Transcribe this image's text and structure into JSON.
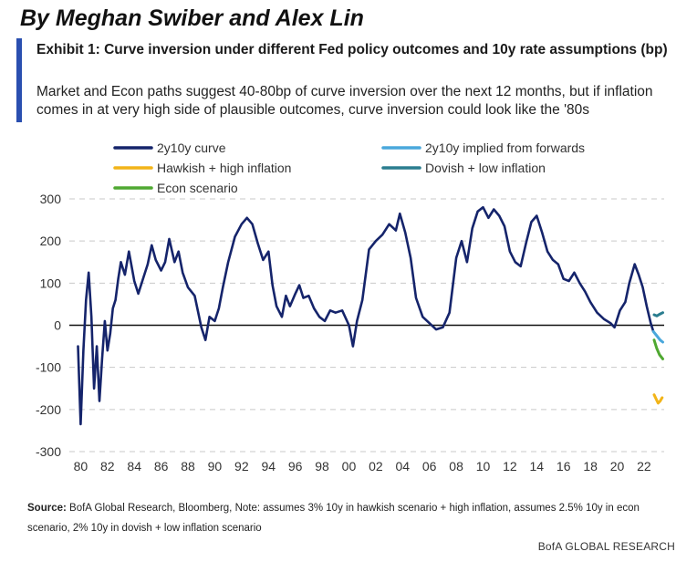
{
  "header": {
    "byline": "By Meghan Swiber and Alex Lin",
    "exhibit_title": "Exhibit 1: Curve inversion under different Fed policy outcomes and 10y rate assumptions (bp)",
    "subtitle": "Market and Econ paths suggest 40-80bp of curve inversion over the next 12 months, but if inflation comes in at very high side of plausible outcomes, curve inversion could look like the '80s"
  },
  "footer": {
    "source_label": "Source:",
    "source_text": " BofA Global Research, Bloomberg, Note: assumes 3% 10y in hawkish scenario + high inflation, assumes 2.5% 10y in econ scenario, 2% 10y in dovish + low inflation scenario",
    "brand": "BofA GLOBAL RESEARCH"
  },
  "chart_data": {
    "type": "line",
    "title": "",
    "xlabel": "",
    "ylabel": "",
    "ylim": [
      -300,
      300
    ],
    "xlim": [
      1979.7,
      2023.5
    ],
    "y_ticks": [
      300,
      200,
      100,
      0,
      -100,
      -200,
      -300
    ],
    "x_ticks": [
      {
        "year": 1980,
        "label": "80"
      },
      {
        "year": 1982,
        "label": "82"
      },
      {
        "year": 1984,
        "label": "84"
      },
      {
        "year": 1986,
        "label": "86"
      },
      {
        "year": 1988,
        "label": "88"
      },
      {
        "year": 1990,
        "label": "90"
      },
      {
        "year": 1992,
        "label": "92"
      },
      {
        "year": 1994,
        "label": "94"
      },
      {
        "year": 1996,
        "label": "96"
      },
      {
        "year": 1998,
        "label": "98"
      },
      {
        "year": 2000,
        "label": "00"
      },
      {
        "year": 2002,
        "label": "02"
      },
      {
        "year": 2004,
        "label": "04"
      },
      {
        "year": 2006,
        "label": "06"
      },
      {
        "year": 2008,
        "label": "08"
      },
      {
        "year": 2010,
        "label": "10"
      },
      {
        "year": 2012,
        "label": "12"
      },
      {
        "year": 2014,
        "label": "14"
      },
      {
        "year": 2016,
        "label": "16"
      },
      {
        "year": 2018,
        "label": "18"
      },
      {
        "year": 2020,
        "label": "20"
      },
      {
        "year": 2022,
        "label": "22"
      }
    ],
    "grid": "horizontal dashed",
    "legend_position": "top",
    "series": [
      {
        "name": "2y10y curve",
        "color": "#15246b",
        "points": [
          [
            1979.8,
            -50
          ],
          [
            1980.0,
            -235
          ],
          [
            1980.2,
            -60
          ],
          [
            1980.4,
            60
          ],
          [
            1980.6,
            125
          ],
          [
            1980.8,
            20
          ],
          [
            1981.0,
            -150
          ],
          [
            1981.2,
            -50
          ],
          [
            1981.4,
            -180
          ],
          [
            1981.6,
            -80
          ],
          [
            1981.8,
            10
          ],
          [
            1982.0,
            -60
          ],
          [
            1982.2,
            -20
          ],
          [
            1982.4,
            40
          ],
          [
            1982.6,
            60
          ],
          [
            1982.8,
            110
          ],
          [
            1983.0,
            150
          ],
          [
            1983.3,
            120
          ],
          [
            1983.6,
            175
          ],
          [
            1984.0,
            105
          ],
          [
            1984.3,
            75
          ],
          [
            1984.6,
            105
          ],
          [
            1985.0,
            145
          ],
          [
            1985.3,
            190
          ],
          [
            1985.6,
            155
          ],
          [
            1986.0,
            130
          ],
          [
            1986.3,
            150
          ],
          [
            1986.6,
            205
          ],
          [
            1987.0,
            150
          ],
          [
            1987.3,
            175
          ],
          [
            1987.6,
            125
          ],
          [
            1988.0,
            90
          ],
          [
            1988.5,
            70
          ],
          [
            1989.0,
            -5
          ],
          [
            1989.3,
            -35
          ],
          [
            1989.6,
            20
          ],
          [
            1990.0,
            10
          ],
          [
            1990.3,
            40
          ],
          [
            1990.6,
            90
          ],
          [
            1991.0,
            150
          ],
          [
            1991.5,
            210
          ],
          [
            1992.0,
            240
          ],
          [
            1992.4,
            255
          ],
          [
            1992.8,
            240
          ],
          [
            1993.2,
            195
          ],
          [
            1993.6,
            155
          ],
          [
            1994.0,
            175
          ],
          [
            1994.3,
            95
          ],
          [
            1994.6,
            45
          ],
          [
            1995.0,
            20
          ],
          [
            1995.3,
            70
          ],
          [
            1995.6,
            45
          ],
          [
            1996.0,
            75
          ],
          [
            1996.3,
            95
          ],
          [
            1996.6,
            65
          ],
          [
            1997.0,
            70
          ],
          [
            1997.4,
            40
          ],
          [
            1997.8,
            20
          ],
          [
            1998.2,
            10
          ],
          [
            1998.6,
            35
          ],
          [
            1999.0,
            30
          ],
          [
            1999.5,
            35
          ],
          [
            2000.0,
            0
          ],
          [
            2000.3,
            -50
          ],
          [
            2000.6,
            10
          ],
          [
            2001.0,
            60
          ],
          [
            2001.5,
            180
          ],
          [
            2002.0,
            200
          ],
          [
            2002.5,
            215
          ],
          [
            2003.0,
            240
          ],
          [
            2003.5,
            225
          ],
          [
            2003.8,
            265
          ],
          [
            2004.2,
            220
          ],
          [
            2004.6,
            160
          ],
          [
            2005.0,
            65
          ],
          [
            2005.5,
            20
          ],
          [
            2006.0,
            5
          ],
          [
            2006.5,
            -10
          ],
          [
            2007.0,
            -5
          ],
          [
            2007.5,
            30
          ],
          [
            2008.0,
            160
          ],
          [
            2008.4,
            200
          ],
          [
            2008.8,
            150
          ],
          [
            2009.2,
            230
          ],
          [
            2009.6,
            270
          ],
          [
            2010.0,
            280
          ],
          [
            2010.4,
            255
          ],
          [
            2010.8,
            275
          ],
          [
            2011.2,
            260
          ],
          [
            2011.6,
            235
          ],
          [
            2012.0,
            175
          ],
          [
            2012.4,
            150
          ],
          [
            2012.8,
            140
          ],
          [
            2013.2,
            195
          ],
          [
            2013.6,
            245
          ],
          [
            2014.0,
            260
          ],
          [
            2014.4,
            220
          ],
          [
            2014.8,
            175
          ],
          [
            2015.2,
            155
          ],
          [
            2015.6,
            145
          ],
          [
            2016.0,
            110
          ],
          [
            2016.4,
            105
          ],
          [
            2016.8,
            125
          ],
          [
            2017.2,
            100
          ],
          [
            2017.6,
            80
          ],
          [
            2018.0,
            55
          ],
          [
            2018.5,
            30
          ],
          [
            2019.0,
            15
          ],
          [
            2019.5,
            5
          ],
          [
            2019.8,
            -5
          ],
          [
            2020.2,
            35
          ],
          [
            2020.6,
            55
          ],
          [
            2020.9,
            100
          ],
          [
            2021.3,
            145
          ],
          [
            2021.6,
            120
          ],
          [
            2021.9,
            90
          ],
          [
            2022.2,
            45
          ],
          [
            2022.5,
            5
          ],
          [
            2022.7,
            -15
          ]
        ]
      },
      {
        "name": "2y10y implied from forwards",
        "color": "#4aa8dc",
        "points": [
          [
            2022.7,
            -15
          ],
          [
            2022.95,
            -25
          ],
          [
            2023.2,
            -35
          ],
          [
            2023.4,
            -40
          ]
        ]
      },
      {
        "name": "Hawkish + high inflation",
        "color": "#f2b418",
        "points": [
          [
            2022.75,
            -165
          ],
          [
            2022.9,
            -175
          ],
          [
            2023.05,
            -185
          ],
          [
            2023.2,
            -180
          ],
          [
            2023.35,
            -172
          ]
        ]
      },
      {
        "name": "Dovish + low inflation",
        "color": "#2a7d8f",
        "points": [
          [
            2022.75,
            25
          ],
          [
            2022.95,
            22
          ],
          [
            2023.15,
            26
          ],
          [
            2023.4,
            30
          ]
        ]
      },
      {
        "name": "Econ scenario",
        "color": "#4fa831",
        "points": [
          [
            2022.75,
            -35
          ],
          [
            2022.95,
            -55
          ],
          [
            2023.15,
            -70
          ],
          [
            2023.4,
            -80
          ]
        ]
      }
    ]
  }
}
